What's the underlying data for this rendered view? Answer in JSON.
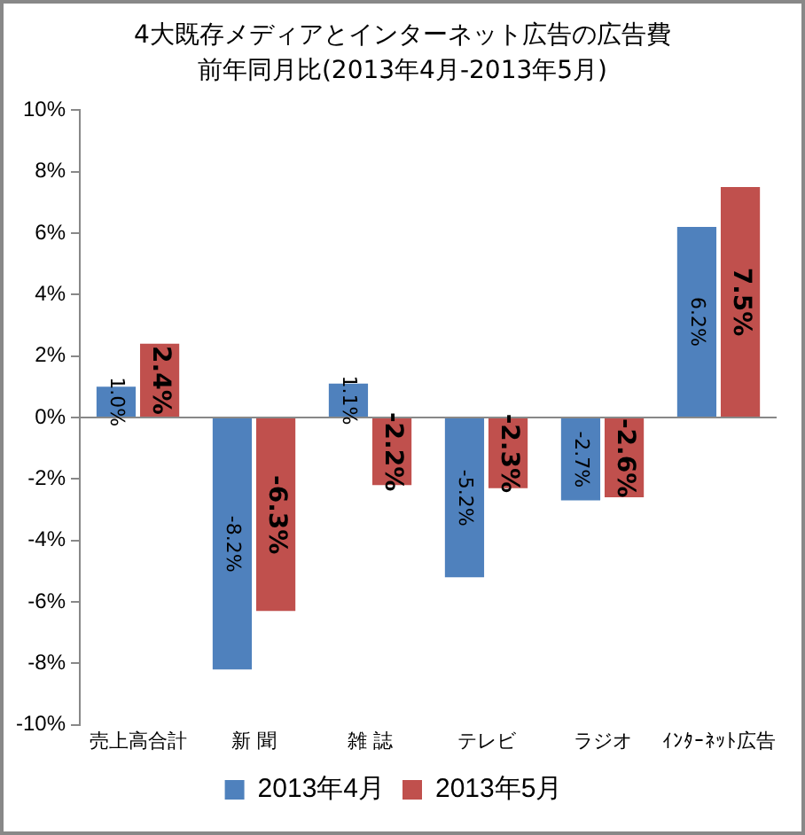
{
  "chart_data": {
    "type": "bar",
    "title": [
      "4大既存メディアとインターネット広告の広告費",
      "前年同月比(2013年4月-2013年5月)"
    ],
    "categories": [
      "売上高合計",
      "新 聞",
      "雑 誌",
      "テレビ",
      "ラジオ",
      "ｲﾝﾀｰﾈｯﾄ広告"
    ],
    "series": [
      {
        "name": "2013年4月",
        "color": "#4f81bd",
        "values": [
          1.0,
          -8.2,
          1.1,
          -5.2,
          -2.7,
          6.2
        ],
        "value_labels": [
          "1.0%",
          "-8.2%",
          "1.1%",
          "-5.2%",
          "-2.7%",
          "6.2%"
        ]
      },
      {
        "name": "2013年5月",
        "color": "#c0504d",
        "values": [
          2.4,
          -6.3,
          -2.2,
          -2.3,
          -2.6,
          7.5
        ],
        "value_labels": [
          "2.4%",
          "-6.3%",
          "-2.2%",
          "-2.3%",
          "-2.6%",
          "7.5%"
        ]
      }
    ],
    "ylim": [
      -10,
      10
    ],
    "yticks": [
      {
        "value": -10,
        "label": "-10%"
      },
      {
        "value": -8,
        "label": "-8%"
      },
      {
        "value": -6,
        "label": "-6%"
      },
      {
        "value": -4,
        "label": "-4%"
      },
      {
        "value": -2,
        "label": "-2%"
      },
      {
        "value": 0,
        "label": "0%"
      },
      {
        "value": 2,
        "label": "2%"
      },
      {
        "value": 4,
        "label": "4%"
      },
      {
        "value": 6,
        "label": "6%"
      },
      {
        "value": 8,
        "label": "8%"
      },
      {
        "value": 10,
        "label": "10%"
      }
    ],
    "ref_lines": [
      {
        "axis": "y",
        "value": 0,
        "color": "#888888"
      }
    ],
    "grid": false,
    "legend": "bottom"
  }
}
